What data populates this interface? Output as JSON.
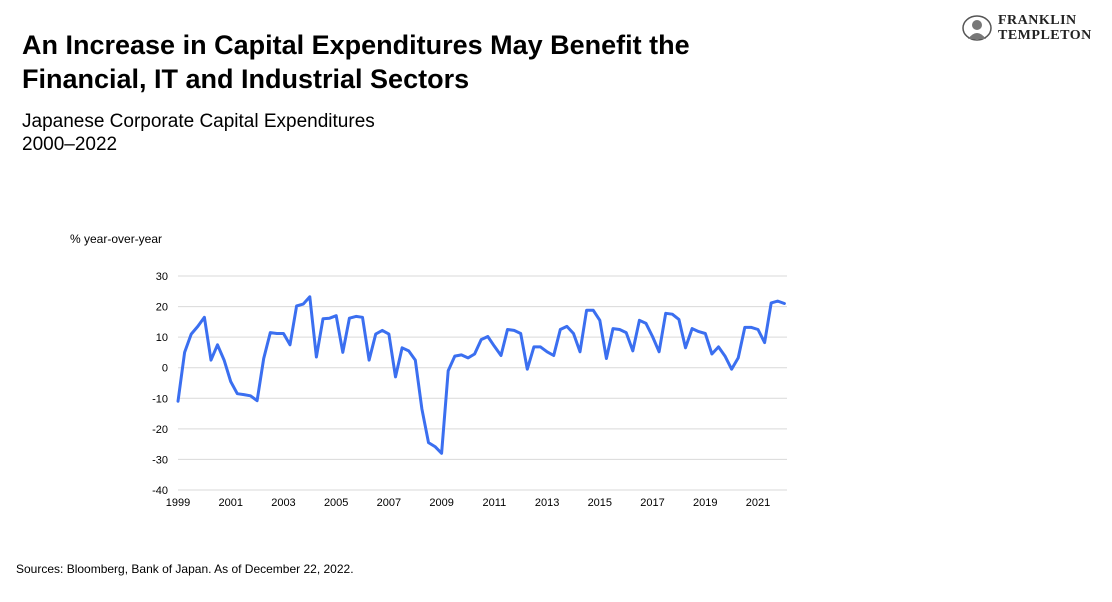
{
  "title_lines": [
    "An Increase in Capital Expenditures May Benefit the",
    "Financial, IT and Industrial Sectors"
  ],
  "subtitle_lines": [
    "Japanese Corporate Capital Expenditures",
    "2000–2022"
  ],
  "logo": {
    "line1": "FRANKLIN",
    "line2": "TEMPLETON"
  },
  "source": "Sources: Bloomberg, Bank of Japan. As of December 22, 2022.",
  "colors": {
    "line": "#3b6ff0",
    "grid": "#d9d9d9"
  },
  "chart_data": {
    "type": "line",
    "ylabel": "% year-over-year",
    "ylim": [
      -40,
      30
    ],
    "yticks": [
      30,
      20,
      10,
      0,
      -10,
      -20,
      -30,
      -40
    ],
    "xlim": [
      1999,
      2022.1
    ],
    "xticks": [
      1999,
      2001,
      2003,
      2005,
      2007,
      2009,
      2011,
      2013,
      2015,
      2017,
      2019,
      2021
    ],
    "grid": true,
    "series": [
      {
        "x": [
          1999.0,
          1999.25,
          1999.5,
          1999.75,
          2000.0,
          2000.25,
          2000.5,
          2000.75,
          2001.0,
          2001.25,
          2001.5,
          2001.75,
          2002.0,
          2002.25,
          2002.5,
          2002.75,
          2003.0,
          2003.25,
          2003.5,
          2003.75,
          2004.0,
          2004.25,
          2004.5,
          2004.75,
          2005.0,
          2005.25,
          2005.5,
          2005.75,
          2006.0,
          2006.25,
          2006.5,
          2006.75,
          2007.0,
          2007.25,
          2007.5,
          2007.75,
          2008.0,
          2008.25,
          2008.5,
          2008.75,
          2009.0,
          2009.25,
          2009.5,
          2009.75,
          2010.0,
          2010.25,
          2010.5,
          2010.75,
          2011.0,
          2011.25,
          2011.5,
          2011.75,
          2012.0,
          2012.25,
          2012.5,
          2012.75,
          2013.0,
          2013.25,
          2013.5,
          2013.75,
          2014.0,
          2014.25,
          2014.5,
          2014.75,
          2015.0,
          2015.25,
          2015.5,
          2015.75,
          2016.0,
          2016.25,
          2016.5,
          2016.75,
          2017.0,
          2017.25,
          2017.5,
          2017.75,
          2018.0,
          2018.25,
          2018.5,
          2018.75,
          2019.0,
          2019.25,
          2019.5,
          2019.75,
          2020.0,
          2020.25,
          2020.5,
          2020.75,
          2021.0,
          2021.25,
          2021.5,
          2021.75,
          2022.0
        ],
        "values": [
          -11,
          5,
          11,
          13.5,
          16.5,
          2.5,
          7.5,
          2.5,
          -4.5,
          -8.5,
          -8.8,
          -9.2,
          -10.8,
          3,
          11.5,
          11.2,
          11.2,
          7.5,
          20.2,
          20.8,
          23.2,
          3.5,
          16,
          16.2,
          17,
          5,
          16.2,
          16.8,
          16.5,
          2.5,
          11,
          12.2,
          11,
          -3,
          6.5,
          5.5,
          2.5,
          -13.5,
          -24.5,
          -25.8,
          -28,
          -1,
          3.8,
          4.2,
          3.2,
          4.5,
          9.2,
          10.2,
          7,
          4,
          12.5,
          12.2,
          11.2,
          -0.5,
          6.8,
          6.8,
          5.2,
          4,
          12.5,
          13.5,
          11.2,
          5.2,
          18.8,
          18.8,
          15.5,
          3,
          12.8,
          12.5,
          11.5,
          5.5,
          15.5,
          14.5,
          10.2,
          5.2,
          17.8,
          17.5,
          15.8,
          6.5,
          12.8,
          11.8,
          11.2,
          4.5,
          6.8,
          3.8,
          -0.5,
          3.2,
          13.2,
          13.2,
          12.5,
          8.2,
          21.2,
          21.8,
          21
        ]
      }
    ]
  }
}
